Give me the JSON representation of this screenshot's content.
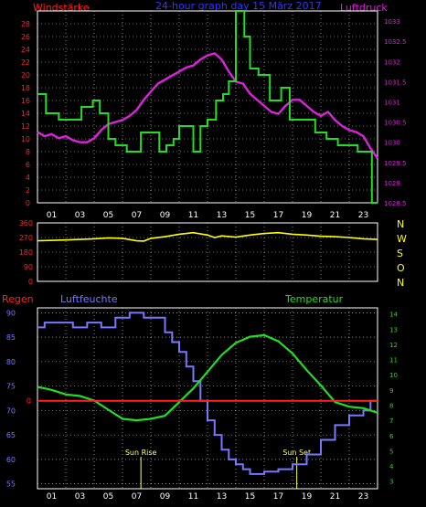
{
  "header": {
    "left_label": "Windstärke",
    "center_title": "24-hour graph day 15 März 2017",
    "right_label": "Luftdruck"
  },
  "colors": {
    "wind": "#22dd22",
    "pressure": "#dd22dd",
    "direction": "#ffff00",
    "humidity": "#7777ff",
    "temperature": "#22dd22",
    "rain": "#ff2222",
    "left_axis": "#ff2222",
    "right_axis": "#dd22dd",
    "grid": "#dddddd",
    "title": "#3333ff",
    "compass": "#ffff00",
    "hum_axis": "#7777ff",
    "temp_axis": "#22dd22",
    "sun": "#ffff66",
    "hour_labels": "#ffffff"
  },
  "compass": [
    "N",
    "W",
    "S",
    "O",
    "N"
  ],
  "bottom_labels": {
    "rain": "Regen",
    "humidity": "Luftfeuchte",
    "temperature": "Temperatur"
  },
  "hour_ticks": [
    "01",
    "03",
    "05",
    "07",
    "09",
    "11",
    "13",
    "15",
    "17",
    "19",
    "21",
    "23"
  ],
  "sun_events": {
    "rise_label": "Sun Rise",
    "set_label": "Sun Set",
    "rise_hour": 7.3,
    "set_hour": 18.3
  },
  "chart_data": [
    {
      "type": "line",
      "title": "24-hour graph day 15 März 2017",
      "x_range": [
        0,
        24
      ],
      "series": [
        {
          "name": "Windstärke",
          "axis": "left",
          "step": true,
          "x": [
            0,
            0.6,
            0.6,
            1.5,
            1.5,
            3.1,
            3.1,
            3.9,
            3.9,
            4.4,
            4.4,
            5.0,
            5.0,
            5.5,
            5.5,
            6.3,
            6.3,
            7.3,
            7.3,
            8.6,
            8.6,
            9.1,
            9.1,
            9.6,
            9.6,
            10.0,
            10.0,
            11.0,
            11.0,
            11.5,
            11.5,
            12.0,
            12.0,
            12.6,
            12.6,
            13.1,
            13.1,
            13.5,
            13.5,
            14.0,
            14.0,
            14.6,
            14.6,
            15.0,
            15.0,
            15.6,
            15.6,
            16.4,
            16.4,
            17.2,
            17.2,
            17.8,
            17.8,
            19.6,
            19.6,
            20.4,
            20.4,
            21.2,
            21.2,
            22.6,
            22.6,
            23.6,
            23.6,
            24
          ],
          "y": [
            17,
            17,
            14,
            14,
            13,
            13,
            15,
            15,
            16,
            16,
            14,
            14,
            10,
            10,
            9,
            9,
            8,
            8,
            11,
            11,
            8,
            8,
            9,
            9,
            10,
            10,
            12,
            12,
            8,
            8,
            12,
            12,
            13,
            13,
            16,
            16,
            17,
            17,
            19,
            19,
            30,
            30,
            26,
            26,
            21,
            21,
            20,
            20,
            16,
            16,
            18,
            18,
            13,
            13,
            11,
            11,
            10,
            10,
            9,
            9,
            8,
            8,
            0,
            0
          ]
        },
        {
          "name": "Luftdruck",
          "axis": "right",
          "x": [
            0,
            0.5,
            1,
            1.5,
            2,
            2.5,
            3,
            3.5,
            4,
            4.5,
            5,
            5.5,
            6,
            6.5,
            7,
            7.5,
            8,
            8.5,
            9,
            9.5,
            10,
            10.5,
            11,
            11.5,
            12,
            12.5,
            13,
            13.5,
            14,
            14.5,
            15,
            15.5,
            16,
            16.5,
            17,
            17.5,
            18,
            18.5,
            19,
            19.5,
            20,
            20.5,
            21,
            21.5,
            22,
            22.5,
            23,
            23.5,
            24
          ],
          "y": [
            1030.25,
            1030.15,
            1030.2,
            1030.1,
            1030.15,
            1030.05,
            1030.0,
            1030.0,
            1030.1,
            1030.3,
            1030.45,
            1030.5,
            1030.55,
            1030.65,
            1030.8,
            1031.05,
            1031.25,
            1031.45,
            1031.55,
            1031.65,
            1031.75,
            1031.85,
            1031.9,
            1032.05,
            1032.15,
            1032.2,
            1032.05,
            1031.75,
            1031.5,
            1031.45,
            1031.2,
            1031.05,
            1030.9,
            1030.75,
            1030.7,
            1030.9,
            1031.05,
            1031.05,
            1030.9,
            1030.75,
            1030.65,
            1030.75,
            1030.55,
            1030.4,
            1030.3,
            1030.25,
            1030.15,
            1029.85,
            1029.6
          ]
        }
      ],
      "y_left": {
        "label": "Windstärke",
        "range": [
          0,
          30
        ],
        "ticks": [
          0,
          2,
          4,
          6,
          8,
          10,
          12,
          14,
          16,
          18,
          20,
          22,
          24,
          26,
          28
        ]
      },
      "y_right": {
        "label": "Luftdruck",
        "range": [
          1028.5,
          1033.25
        ],
        "ticks": [
          "1028.5",
          "1029",
          "1029.5",
          "1030",
          "1030.5",
          "1031",
          "1031.5",
          "1032",
          "1032.5",
          "1033"
        ]
      }
    },
    {
      "type": "line",
      "x_range": [
        0,
        24
      ],
      "series": [
        {
          "x": [
            0,
            2,
            4,
            5,
            6,
            7,
            7.5,
            8,
            9,
            10,
            11,
            12,
            12.5,
            13,
            14,
            15,
            16,
            17,
            18,
            19,
            20,
            21,
            22,
            23,
            24
          ],
          "y": [
            250,
            255,
            262,
            268,
            265,
            250,
            248,
            265,
            275,
            290,
            300,
            285,
            270,
            280,
            272,
            285,
            295,
            300,
            290,
            285,
            278,
            275,
            270,
            262,
            258
          ]
        }
      ],
      "y_left": {
        "range": [
          0,
          360
        ],
        "ticks": [
          "0",
          "90",
          "180",
          "270",
          "360"
        ]
      }
    },
    {
      "type": "line",
      "x_range": [
        0,
        24
      ],
      "series": [
        {
          "name": "Luftfeuchte",
          "axis": "left",
          "step": true,
          "x": [
            0,
            0.5,
            0.5,
            2.5,
            2.5,
            3.5,
            3.5,
            4.5,
            4.5,
            5.5,
            5.5,
            6.5,
            6.5,
            7.5,
            7.5,
            9.0,
            9.0,
            9.5,
            9.5,
            10.0,
            10.0,
            10.5,
            10.5,
            11.0,
            11.0,
            11.5,
            11.5,
            12.0,
            12.0,
            12.5,
            12.5,
            13.0,
            13.0,
            13.5,
            13.5,
            14.0,
            14.0,
            14.5,
            14.5,
            15.0,
            15.0,
            16.0,
            16.0,
            17.0,
            17.0,
            18.0,
            18.0,
            19.0,
            19.0,
            20.0,
            20.0,
            21.0,
            21.0,
            22.0,
            22.0,
            23.0,
            23.0,
            23.5,
            23.5,
            24
          ],
          "y": [
            87,
            87,
            88,
            88,
            87,
            87,
            88,
            88,
            87,
            87,
            89,
            89,
            90,
            90,
            89,
            89,
            86,
            86,
            84,
            84,
            82,
            82,
            79,
            79,
            76,
            76,
            72,
            72,
            68,
            68,
            65,
            65,
            62,
            62,
            60,
            60,
            59,
            59,
            58,
            58,
            57,
            57,
            57.5,
            57.5,
            58,
            58,
            59,
            59,
            61,
            61,
            64,
            64,
            67,
            67,
            69,
            69,
            70,
            70,
            72,
            72
          ]
        },
        {
          "name": "Temperatur",
          "axis": "right",
          "x": [
            0,
            1,
            2,
            3,
            4,
            5,
            6,
            7,
            8,
            9,
            10,
            11,
            12,
            13,
            14,
            15,
            16,
            17,
            18,
            19,
            20,
            21,
            22,
            23,
            24
          ],
          "y": [
            9.2,
            9.0,
            8.7,
            8.6,
            8.3,
            7.7,
            7.1,
            7.0,
            7.1,
            7.3,
            8.2,
            9.1,
            10.2,
            11.3,
            12.1,
            12.5,
            12.6,
            12.2,
            11.4,
            10.3,
            9.3,
            8.2,
            7.9,
            7.8,
            7.5
          ]
        },
        {
          "name": "Regen",
          "axis": "left",
          "x": [
            0,
            24
          ],
          "y": [
            72,
            72
          ]
        }
      ],
      "y_left": {
        "label": "Luftfeuchte",
        "range": [
          54,
          91
        ],
        "ticks": [
          "55",
          "60",
          "65",
          "70",
          "75",
          "80",
          "85",
          "90"
        ],
        "rain_tick": "0"
      },
      "y_right": {
        "label": "Temperatur",
        "range": [
          2.5,
          14.4
        ],
        "ticks": [
          "3",
          "4",
          "5",
          "6",
          "7",
          "8",
          "9",
          "10",
          "11",
          "12",
          "13",
          "14"
        ]
      }
    }
  ]
}
